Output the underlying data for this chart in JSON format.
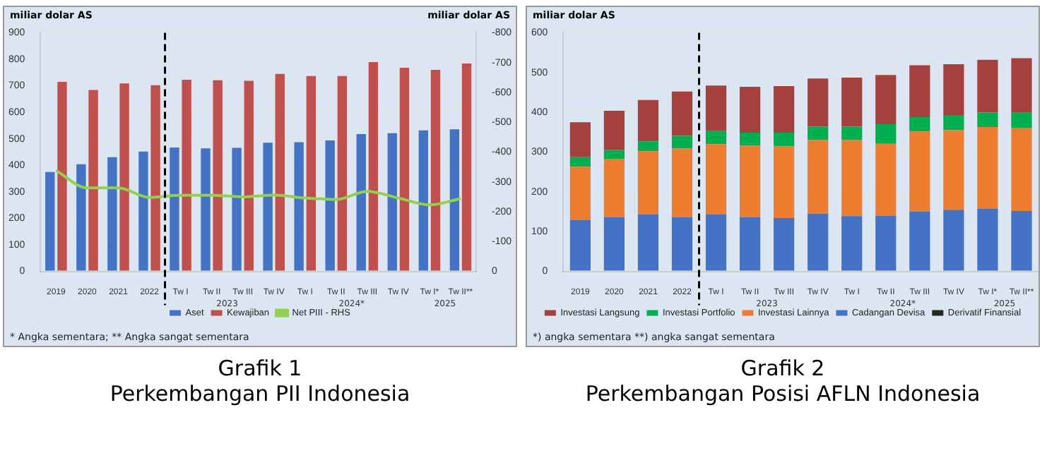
{
  "chart_data": [
    {
      "type": "bar",
      "title": "Grafik 1",
      "subtitle": "Perkembangan PII Indonesia",
      "ylabel": "miliar dolar AS",
      "y2label": "miliar dolar AS",
      "categories": [
        "2019",
        "2020",
        "2021",
        "2022",
        "Tw I",
        "Tw II",
        "Tw III",
        "Tw IV",
        "Tw I",
        "Tw II",
        "Tw III",
        "Tw IV",
        "Tw I*",
        "Tw II**"
      ],
      "series": [
        {
          "name": "Aset",
          "color": "#4472c4",
          "values": [
            375,
            404,
            431,
            452,
            467,
            464,
            466,
            485,
            487,
            494,
            518,
            521,
            532,
            536
          ]
        },
        {
          "name": "Kewajiban",
          "color": "#c0504d",
          "values": [
            715,
            684,
            709,
            702,
            723,
            721,
            719,
            745,
            737,
            737,
            789,
            768,
            760,
            784
          ]
        },
        {
          "name": "Net PIII - RHS",
          "type": "line",
          "axis": "y2",
          "color": "#92d050",
          "values": [
            -338,
            -280,
            -280,
            -248,
            -255,
            -255,
            -250,
            -256,
            -246,
            -241,
            -268,
            -246,
            -223,
            -244
          ]
        }
      ],
      "ylim": [
        0,
        900
      ],
      "yticks": [
        0,
        100,
        200,
        300,
        400,
        500,
        600,
        700,
        800,
        900
      ],
      "y2lim": [
        0,
        -800
      ],
      "y2ticks": [
        0,
        -100,
        -200,
        -300,
        -400,
        -500,
        -600,
        -700,
        -800
      ],
      "ref_lines": [
        {
          "axis": "x",
          "value": "Tw I",
          "color": "#000000",
          "line_style": "dashed"
        }
      ],
      "annotations": [
        "2023",
        "2024*",
        "2025",
        "* Angka sementara; ** Angka sangat sementara"
      ],
      "grid": "y",
      "legend": "bottom",
      "marker": "none"
    },
    {
      "type": "bar",
      "title": "Grafik 2",
      "subtitle": "Perkembangan Posisi AFLN Indonesia",
      "ylabel": "miliar dolar AS",
      "categories": [
        "2019",
        "2020",
        "2021",
        "2022",
        "Tw I",
        "Tw II",
        "Tw III",
        "Tw IV",
        "Tw I",
        "Tw II",
        "Tw III",
        "Tw IV",
        "Tw I*",
        "Tw II**"
      ],
      "stacked": true,
      "series": [
        {
          "name": "Cadangan Devisa",
          "color": "#4472c4",
          "values": [
            129,
            136,
            144,
            137,
            144,
            137,
            134,
            145,
            139,
            140,
            150,
            155,
            157,
            152
          ]
        },
        {
          "name": "Investasi Lainnya",
          "color": "#ed7d31",
          "values": [
            134,
            147,
            158,
            172,
            176,
            179,
            180,
            185,
            191,
            181,
            202,
            200,
            206,
            208
          ]
        },
        {
          "name": "Investasi Portfolio",
          "color": "#00b050",
          "values": [
            24,
            22,
            25,
            32,
            33,
            33,
            35,
            34,
            34,
            49,
            36,
            38,
            37,
            39
          ]
        },
        {
          "name": "Investasi Langsung",
          "color": "#a5403c",
          "values": [
            88,
            99,
            104,
            111,
            114,
            115,
            117,
            121,
            123,
            124,
            130,
            128,
            132,
            137
          ]
        },
        {
          "name": "Derivatif Finansial",
          "color": "#262626",
          "values": [
            0,
            0,
            0,
            0,
            0,
            0,
            0,
            0,
            0,
            0,
            0,
            0,
            0,
            0
          ]
        }
      ],
      "ylim": [
        0,
        600
      ],
      "yticks": [
        0,
        100,
        200,
        300,
        400,
        500,
        600
      ],
      "ref_lines": [
        {
          "axis": "x",
          "value": "Tw I",
          "color": "#000000",
          "line_style": "dashed"
        }
      ],
      "annotations": [
        "2023",
        "2024*",
        "2025",
        "*) angka sementara  **) angka sangat sementara"
      ],
      "grid": "y",
      "legend": "bottom"
    }
  ]
}
